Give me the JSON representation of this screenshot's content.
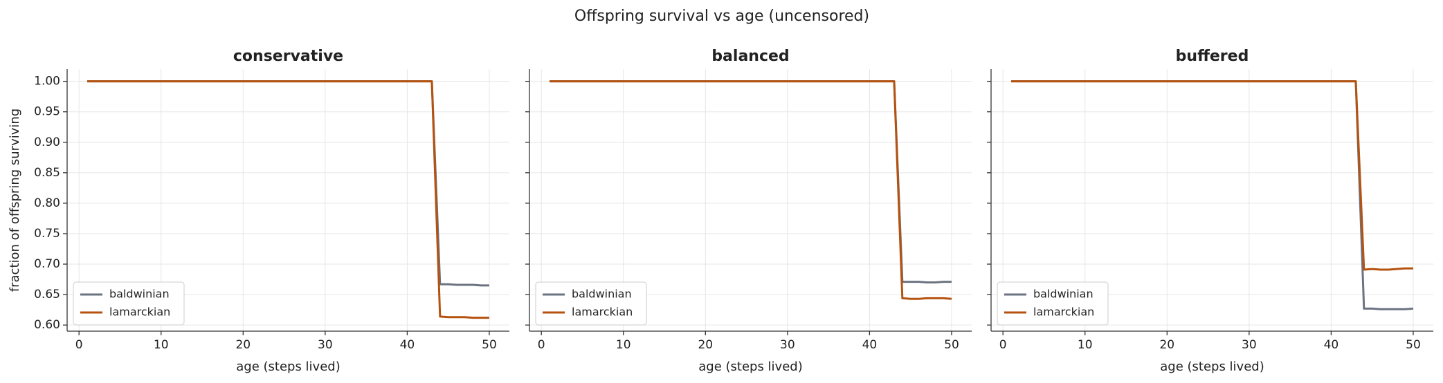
{
  "title": "Offspring survival vs age (uncensored)",
  "chart_data": [
    {
      "type": "line",
      "title": "conservative",
      "title_color": "#b5520f",
      "xlabel": "age (steps lived)",
      "ylabel": "fraction of offspring surviving",
      "x": [
        1,
        2,
        3,
        4,
        5,
        6,
        7,
        8,
        9,
        10,
        11,
        12,
        13,
        14,
        15,
        16,
        17,
        18,
        19,
        20,
        21,
        22,
        23,
        24,
        25,
        26,
        27,
        28,
        29,
        30,
        31,
        32,
        33,
        34,
        35,
        36,
        37,
        38,
        39,
        40,
        41,
        42,
        43,
        44,
        45,
        46,
        47,
        48,
        49,
        50
      ],
      "series": [
        {
          "name": "baldwinian",
          "color": "#6b7280",
          "values": [
            1,
            1,
            1,
            1,
            1,
            1,
            1,
            1,
            1,
            1,
            1,
            1,
            1,
            1,
            1,
            1,
            1,
            1,
            1,
            1,
            1,
            1,
            1,
            1,
            1,
            1,
            1,
            1,
            1,
            1,
            1,
            1,
            1,
            1,
            1,
            1,
            1,
            1,
            1,
            1,
            1,
            1,
            1,
            0.667,
            0.667,
            0.666,
            0.666,
            0.666,
            0.665,
            0.665
          ]
        },
        {
          "name": "lamarckian",
          "color": "#b5520f",
          "values": [
            1,
            1,
            1,
            1,
            1,
            1,
            1,
            1,
            1,
            1,
            1,
            1,
            1,
            1,
            1,
            1,
            1,
            1,
            1,
            1,
            1,
            1,
            1,
            1,
            1,
            1,
            1,
            1,
            1,
            1,
            1,
            1,
            1,
            1,
            1,
            1,
            1,
            1,
            1,
            1,
            1,
            1,
            1,
            0.614,
            0.613,
            0.613,
            0.613,
            0.612,
            0.612,
            0.612
          ]
        }
      ],
      "xlim": [
        -1.45,
        52.45
      ],
      "xticks": [
        0,
        10,
        20,
        30,
        40,
        50
      ],
      "ylim": [
        0.59,
        1.02
      ],
      "yticks": [
        {
          "value": 0.6,
          "label": "0.60"
        },
        {
          "value": 0.65,
          "label": "0.65"
        },
        {
          "value": 0.7,
          "label": "0.70"
        },
        {
          "value": 0.75,
          "label": "0.75"
        },
        {
          "value": 0.8,
          "label": "0.80"
        },
        {
          "value": 0.85,
          "label": "0.85"
        },
        {
          "value": 0.9,
          "label": "0.90"
        },
        {
          "value": 0.95,
          "label": "0.95"
        },
        {
          "value": 1.0,
          "label": "1.00"
        }
      ],
      "grid": true,
      "legend": "lower left"
    },
    {
      "type": "line",
      "title": "balanced",
      "title_color": "#6b7280",
      "xlabel": "age (steps lived)",
      "x": [
        1,
        2,
        3,
        4,
        5,
        6,
        7,
        8,
        9,
        10,
        11,
        12,
        13,
        14,
        15,
        16,
        17,
        18,
        19,
        20,
        21,
        22,
        23,
        24,
        25,
        26,
        27,
        28,
        29,
        30,
        31,
        32,
        33,
        34,
        35,
        36,
        37,
        38,
        39,
        40,
        41,
        42,
        43,
        44,
        45,
        46,
        47,
        48,
        49,
        50
      ],
      "series": [
        {
          "name": "baldwinian",
          "color": "#6b7280",
          "values": [
            1,
            1,
            1,
            1,
            1,
            1,
            1,
            1,
            1,
            1,
            1,
            1,
            1,
            1,
            1,
            1,
            1,
            1,
            1,
            1,
            1,
            1,
            1,
            1,
            1,
            1,
            1,
            1,
            1,
            1,
            1,
            1,
            1,
            1,
            1,
            1,
            1,
            1,
            1,
            1,
            1,
            1,
            1,
            0.671,
            0.671,
            0.671,
            0.67,
            0.67,
            0.671,
            0.671
          ]
        },
        {
          "name": "lamarckian",
          "color": "#b5520f",
          "values": [
            1,
            1,
            1,
            1,
            1,
            1,
            1,
            1,
            1,
            1,
            1,
            1,
            1,
            1,
            1,
            1,
            1,
            1,
            1,
            1,
            1,
            1,
            1,
            1,
            1,
            1,
            1,
            1,
            1,
            1,
            1,
            1,
            1,
            1,
            1,
            1,
            1,
            1,
            1,
            1,
            1,
            1,
            1,
            0.644,
            0.643,
            0.643,
            0.644,
            0.644,
            0.644,
            0.643
          ]
        }
      ],
      "xlim": [
        -1.45,
        52.45
      ],
      "xticks": [
        0,
        10,
        20,
        30,
        40,
        50
      ],
      "grid": true,
      "legend": "lower left"
    },
    {
      "type": "line",
      "title": "buffered",
      "title_color": "#2e7d32",
      "xlabel": "age (steps lived)",
      "x": [
        1,
        2,
        3,
        4,
        5,
        6,
        7,
        8,
        9,
        10,
        11,
        12,
        13,
        14,
        15,
        16,
        17,
        18,
        19,
        20,
        21,
        22,
        23,
        24,
        25,
        26,
        27,
        28,
        29,
        30,
        31,
        32,
        33,
        34,
        35,
        36,
        37,
        38,
        39,
        40,
        41,
        42,
        43,
        44,
        45,
        46,
        47,
        48,
        49,
        50
      ],
      "series": [
        {
          "name": "baldwinian",
          "color": "#6b7280",
          "values": [
            1,
            1,
            1,
            1,
            1,
            1,
            1,
            1,
            1,
            1,
            1,
            1,
            1,
            1,
            1,
            1,
            1,
            1,
            1,
            1,
            1,
            1,
            1,
            1,
            1,
            1,
            1,
            1,
            1,
            1,
            1,
            1,
            1,
            1,
            1,
            1,
            1,
            1,
            1,
            1,
            1,
            1,
            1,
            0.627,
            0.627,
            0.626,
            0.626,
            0.626,
            0.626,
            0.627
          ]
        },
        {
          "name": "lamarckian",
          "color": "#b5520f",
          "values": [
            1,
            1,
            1,
            1,
            1,
            1,
            1,
            1,
            1,
            1,
            1,
            1,
            1,
            1,
            1,
            1,
            1,
            1,
            1,
            1,
            1,
            1,
            1,
            1,
            1,
            1,
            1,
            1,
            1,
            1,
            1,
            1,
            1,
            1,
            1,
            1,
            1,
            1,
            1,
            1,
            1,
            1,
            1,
            0.691,
            0.692,
            0.691,
            0.691,
            0.692,
            0.693,
            0.693
          ]
        }
      ],
      "xlim": [
        -1.45,
        52.45
      ],
      "xticks": [
        0,
        10,
        20,
        30,
        40,
        50
      ],
      "grid": true,
      "legend": "lower left"
    }
  ]
}
